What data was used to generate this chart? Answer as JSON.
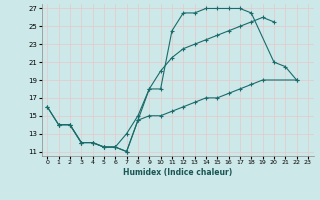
{
  "xlabel": "Humidex (Indice chaleur)",
  "bg_color": "#cde8e8",
  "grid_color": "#ffffff",
  "line_color": "#1a6b6b",
  "xlim": [
    -0.5,
    23.5
  ],
  "ylim": [
    10.5,
    27.5
  ],
  "xticks": [
    0,
    1,
    2,
    3,
    4,
    5,
    6,
    7,
    8,
    9,
    10,
    11,
    12,
    13,
    14,
    15,
    16,
    17,
    18,
    19,
    20,
    21,
    22,
    23
  ],
  "yticks": [
    11,
    13,
    15,
    17,
    19,
    21,
    23,
    25,
    27
  ],
  "line1_x": [
    0,
    1,
    2,
    3,
    4,
    5,
    6,
    7,
    8,
    9,
    10,
    11,
    12,
    13,
    14,
    15,
    16,
    17,
    18,
    20,
    21,
    22
  ],
  "line1_y": [
    16,
    14,
    14,
    12,
    12,
    11.5,
    11.5,
    11,
    14.5,
    18,
    18,
    24.5,
    26.5,
    26.5,
    27,
    27,
    27,
    27,
    26.5,
    21,
    20.5,
    19
  ],
  "line2_x": [
    0,
    1,
    2,
    3,
    4,
    5,
    6,
    7,
    8,
    9,
    10,
    11,
    12,
    13,
    14,
    15,
    16,
    17,
    18,
    19,
    20
  ],
  "line2_y": [
    16,
    14,
    14,
    12,
    12,
    11.5,
    11.5,
    13,
    15,
    18,
    20,
    21.5,
    22.5,
    23,
    23.5,
    24,
    24.5,
    25,
    25.5,
    26,
    25.5
  ],
  "line3_x": [
    1,
    2,
    3,
    4,
    5,
    6,
    7,
    8,
    9,
    10,
    11,
    12,
    13,
    14,
    15,
    16,
    17,
    18,
    19,
    22
  ],
  "line3_y": [
    14,
    14,
    12,
    12,
    11.5,
    11.5,
    11,
    14.5,
    15,
    15,
    15.5,
    16,
    16.5,
    17,
    17,
    17.5,
    18,
    18.5,
    19,
    19
  ]
}
